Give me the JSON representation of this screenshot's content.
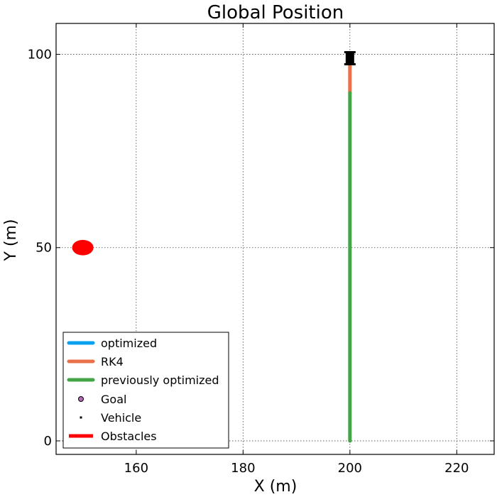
{
  "chart_data": {
    "type": "line",
    "title": "Global Position",
    "xlabel": "X (m)",
    "ylabel": "Y (m)",
    "xlim": [
      145,
      227
    ],
    "ylim": [
      -3.5,
      108
    ],
    "xticks": [
      160,
      180,
      200,
      220
    ],
    "yticks": [
      0,
      50,
      100
    ],
    "grid": true,
    "legend_position": "lower-left",
    "series": [
      {
        "name": "optimized",
        "color": "#0aa0f0",
        "x": [],
        "y": []
      },
      {
        "name": "RK4",
        "color": "#e8704a",
        "x": [
          200,
          200,
          200
        ],
        "y": [
          90,
          95,
          100
        ]
      },
      {
        "name": "previously optimized",
        "color": "#44a548",
        "x": [
          200,
          200,
          200,
          200
        ],
        "y": [
          0,
          30,
          60,
          90
        ]
      }
    ],
    "goal": {
      "name": "Goal",
      "color": "#b06ab3",
      "x": 200,
      "y": 100
    },
    "vehicle": {
      "name": "Vehicle",
      "color": "#000000",
      "x": 200,
      "y": 99
    },
    "obstacles": {
      "name": "Obstacles",
      "color": "#ff0000",
      "points": [
        {
          "x": 150,
          "y": 50,
          "r": 2
        }
      ]
    }
  }
}
